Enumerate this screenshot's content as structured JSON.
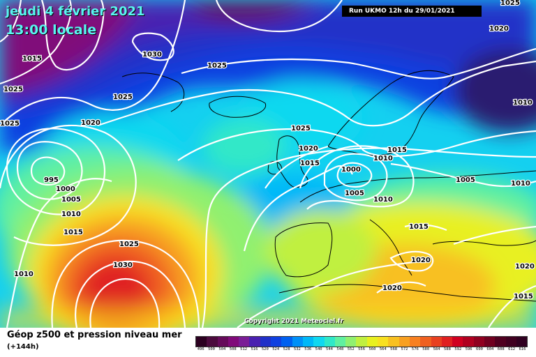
{
  "header": {
    "date": "jeudi 4 février 2021",
    "time": "13:00 locale",
    "run": "Run UKMO 12h du 29/01/2021"
  },
  "copyright": "Copyright 2021 Meteociel.fr",
  "footer": {
    "title": "Géop z500 et pression niveau mer",
    "subtitle": "(+144h)"
  },
  "scale": {
    "labels": [
      "496",
      "500",
      "504",
      "508",
      "512",
      "516",
      "520",
      "524",
      "528",
      "532",
      "536",
      "540",
      "544",
      "548",
      "552",
      "556",
      "560",
      "564",
      "568",
      "572",
      "576",
      "580",
      "584",
      "588",
      "592",
      "596",
      "600",
      "604",
      "608",
      "612",
      "616"
    ],
    "colors": [
      "#2b0020",
      "#4b0a3d",
      "#650a5a",
      "#800a7a",
      "#7a1d96",
      "#4a20b0",
      "#2030c8",
      "#1040e0",
      "#0060f0",
      "#0090f8",
      "#00b8f8",
      "#10d8f0",
      "#30e8c8",
      "#60f0a0",
      "#90f070",
      "#c0f040",
      "#e8f020",
      "#f8e020",
      "#f8c020",
      "#f8a020",
      "#f88020",
      "#f06020",
      "#e84020",
      "#e02020",
      "#d00020",
      "#b00020",
      "#900020",
      "#700020",
      "#500020",
      "#400020",
      "#300020"
    ]
  },
  "isobars": [
    {
      "label": "1025"
    },
    {
      "label": "1030"
    },
    {
      "label": "1025"
    },
    {
      "label": "1015"
    },
    {
      "label": "1025"
    },
    {
      "label": "1025"
    },
    {
      "label": "1020"
    },
    {
      "label": "1025"
    },
    {
      "label": "1020"
    },
    {
      "label": "1010"
    },
    {
      "label": "1020"
    },
    {
      "label": "1025"
    },
    {
      "label": "1015"
    },
    {
      "label": "1015"
    },
    {
      "label": "1010"
    },
    {
      "label": "1000"
    },
    {
      "label": "1005"
    },
    {
      "label": "995"
    },
    {
      "label": "1000"
    },
    {
      "label": "1005"
    },
    {
      "label": "1010"
    },
    {
      "label": "1015"
    },
    {
      "label": "1005"
    },
    {
      "label": "1010"
    },
    {
      "label": "1010"
    },
    {
      "label": "1015"
    },
    {
      "label": "1025"
    },
    {
      "label": "1030"
    },
    {
      "label": "1010"
    },
    {
      "label": "1020"
    },
    {
      "label": "1020"
    },
    {
      "label": "1020"
    },
    {
      "label": "1015"
    }
  ]
}
